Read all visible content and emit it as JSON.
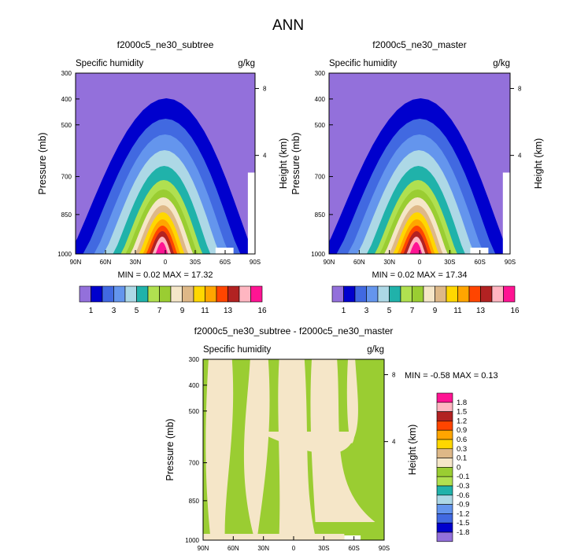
{
  "page_title": "ANN",
  "chart_data": [
    {
      "type": "contour",
      "title": "f2000c5_ne30_subtree",
      "subtitle_left": "Specific humidity",
      "subtitle_right": "g/kg",
      "ylabel": "Pressure (mb)",
      "ylabel_right": "Height (km)",
      "x_ticks": [
        "90N",
        "60N",
        "30N",
        "0",
        "30S",
        "60S",
        "90S"
      ],
      "y_ticks": [
        "300",
        "400",
        "500",
        "700",
        "850",
        "1000"
      ],
      "y_ticks_right": [
        "8",
        "4"
      ],
      "min_max": "MIN =   0.02  MAX =  17.32",
      "levels": [
        1,
        2,
        3,
        4,
        5,
        6,
        7,
        8,
        9,
        10,
        11,
        12,
        13,
        14,
        15,
        16
      ],
      "colorbar_labels": [
        "1",
        "3",
        "5",
        "7",
        "9",
        "11",
        "13",
        "16"
      ],
      "colors": [
        "#9370db",
        "#0000cd",
        "#4169e1",
        "#6495ed",
        "#add8e6",
        "#20b2aa",
        "#b0e050",
        "#9acd32",
        "#f5e6c8",
        "#deb887",
        "#ffd700",
        "#ffa500",
        "#ff4500",
        "#b22222",
        "#ffb6c1",
        "#ff1493"
      ]
    },
    {
      "type": "contour",
      "title": "f2000c5_ne30_master",
      "subtitle_left": "Specific humidity",
      "subtitle_right": "g/kg",
      "ylabel": "Pressure (mb)",
      "ylabel_right": "Height (km)",
      "x_ticks": [
        "90N",
        "60N",
        "30N",
        "0",
        "30S",
        "60S",
        "90S"
      ],
      "y_ticks": [
        "300",
        "400",
        "500",
        "700",
        "850",
        "1000"
      ],
      "y_ticks_right": [
        "8",
        "4"
      ],
      "min_max": "MIN =   0.02  MAX =  17.34",
      "levels": [
        1,
        2,
        3,
        4,
        5,
        6,
        7,
        8,
        9,
        10,
        11,
        12,
        13,
        14,
        15,
        16
      ],
      "colorbar_labels": [
        "1",
        "3",
        "5",
        "7",
        "9",
        "11",
        "13",
        "16"
      ],
      "colors": [
        "#9370db",
        "#0000cd",
        "#4169e1",
        "#6495ed",
        "#add8e6",
        "#20b2aa",
        "#b0e050",
        "#9acd32",
        "#f5e6c8",
        "#deb887",
        "#ffd700",
        "#ffa500",
        "#ff4500",
        "#b22222",
        "#ffb6c1",
        "#ff1493"
      ]
    },
    {
      "type": "contour",
      "title": "f2000c5_ne30_subtree - f2000c5_ne30_master",
      "subtitle_left": "Specific humidity",
      "subtitle_right": "g/kg",
      "ylabel": "Pressure (mb)",
      "ylabel_right": "Height (km)",
      "x_ticks": [
        "90N",
        "60N",
        "30N",
        "0",
        "30S",
        "60S",
        "90S"
      ],
      "y_ticks": [
        "300",
        "400",
        "500",
        "700",
        "850",
        "1000"
      ],
      "y_ticks_right": [
        "8",
        "4"
      ],
      "min_max": "MIN =  -0.58  MAX =   0.13",
      "colorbar_labels": [
        "1.8",
        "1.5",
        "1.2",
        "0.9",
        "0.6",
        "0.3",
        "0.1",
        "0",
        "-0.1",
        "-0.3",
        "-0.6",
        "-0.9",
        "-1.2",
        "-1.5",
        "-1.8"
      ],
      "colors": [
        "#ff1493",
        "#ffb6c1",
        "#b22222",
        "#ff4500",
        "#ffa500",
        "#ffd700",
        "#deb887",
        "#f5e6c8",
        "#9acd32",
        "#b0e050",
        "#20b2aa",
        "#add8e6",
        "#6495ed",
        "#4169e1",
        "#0000cd",
        "#9370db"
      ]
    }
  ]
}
